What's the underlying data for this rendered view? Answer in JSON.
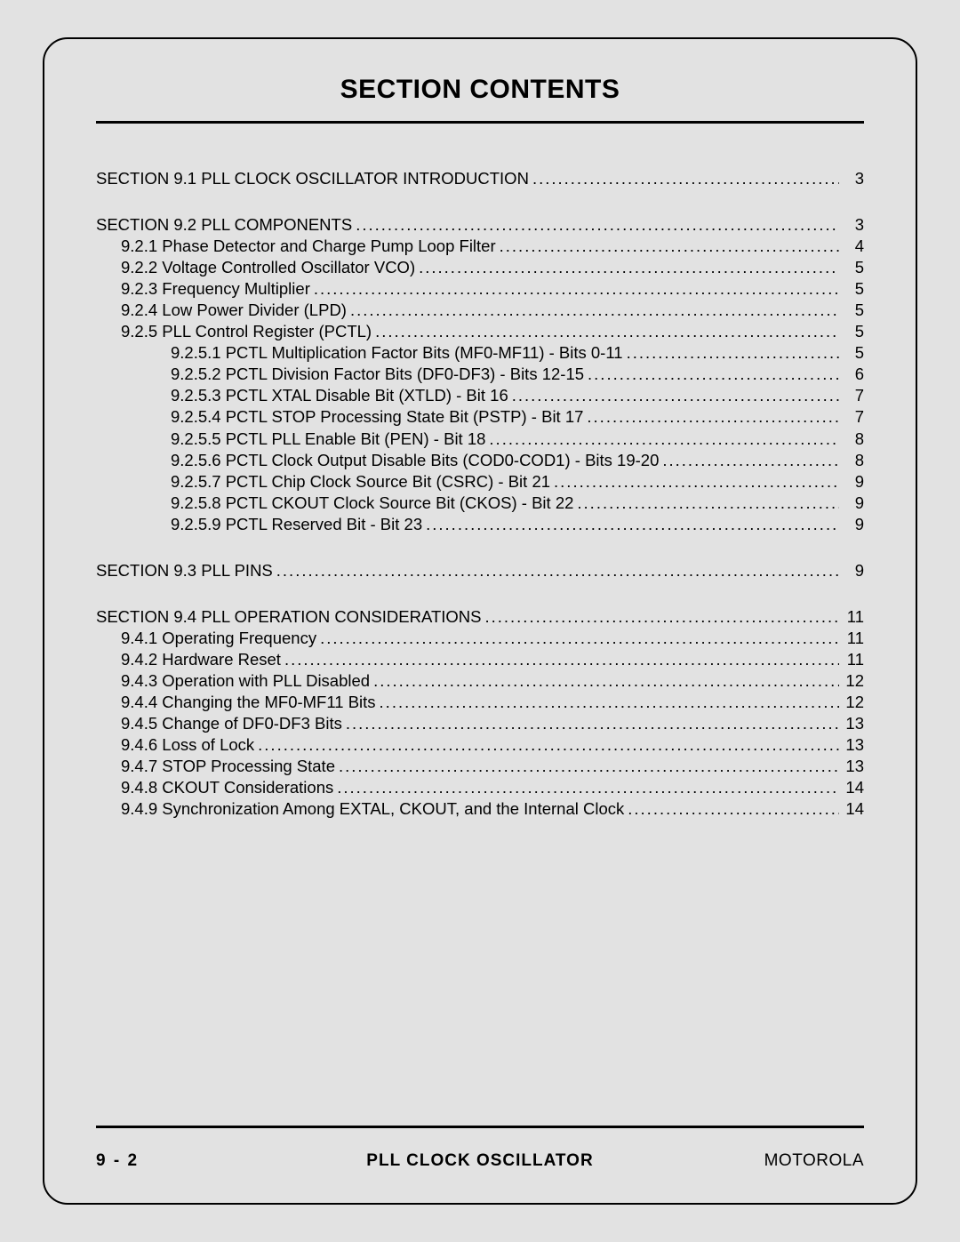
{
  "title": "SECTION CONTENTS",
  "footer": {
    "left": "9 - 2",
    "center": "PLL CLOCK OSCILLATOR",
    "right": "MOTOROLA"
  },
  "colors": {
    "page_bg": "#e2e2e2",
    "text": "#000000",
    "rule": "#000000"
  },
  "typography": {
    "title_fontsize": 30,
    "body_fontsize": 18.5,
    "footer_fontsize": 19
  },
  "toc": [
    {
      "entries": [
        {
          "level": 0,
          "label": "SECTION 9.1 PLL CLOCK OSCILLATOR INTRODUCTION",
          "page": "3"
        }
      ]
    },
    {
      "entries": [
        {
          "level": 0,
          "label": "SECTION 9.2 PLL COMPONENTS",
          "page": "3"
        },
        {
          "level": 1,
          "label": "9.2.1 Phase Detector and Charge Pump Loop Filter",
          "page": "4"
        },
        {
          "level": 1,
          "label": "9.2.2 Voltage Controlled Oscillator VCO)",
          "page": "5"
        },
        {
          "level": 1,
          "label": "9.2.3 Frequency Multiplier",
          "page": "5"
        },
        {
          "level": 1,
          "label": "9.2.4 Low Power Divider (LPD)",
          "page": "5"
        },
        {
          "level": 1,
          "label": "9.2.5 PLL Control Register (PCTL)",
          "page": "5"
        },
        {
          "level": 2,
          "label": "9.2.5.1 PCTL Multiplication Factor Bits (MF0-MF11) - Bits 0-11",
          "page": "5"
        },
        {
          "level": 2,
          "label": "9.2.5.2 PCTL Division Factor Bits (DF0-DF3) - Bits 12-15",
          "page": "6"
        },
        {
          "level": 2,
          "label": "9.2.5.3 PCTL XTAL Disable Bit (XTLD) - Bit 16",
          "page": "7"
        },
        {
          "level": 2,
          "label": "9.2.5.4 PCTL STOP Processing State Bit (PSTP) - Bit 17",
          "page": "7"
        },
        {
          "level": 2,
          "label": "9.2.5.5 PCTL PLL Enable Bit (PEN) - Bit 18",
          "page": "8"
        },
        {
          "level": 2,
          "label": "9.2.5.6 PCTL Clock Output Disable Bits (COD0-COD1) - Bits 19-20",
          "page": "8"
        },
        {
          "level": 2,
          "label": "9.2.5.7 PCTL Chip Clock Source Bit (CSRC) - Bit 21",
          "page": "9"
        },
        {
          "level": 2,
          "label": "9.2.5.8 PCTL CKOUT Clock Source Bit (CKOS) - Bit 22",
          "page": "9"
        },
        {
          "level": 2,
          "label": "9.2.5.9 PCTL Reserved Bit - Bit 23",
          "page": "9"
        }
      ]
    },
    {
      "entries": [
        {
          "level": 0,
          "label": "SECTION 9.3 PLL PINS",
          "page": "9"
        }
      ]
    },
    {
      "entries": [
        {
          "level": 0,
          "label": "SECTION 9.4 PLL OPERATION CONSIDERATIONS",
          "page": "11"
        },
        {
          "level": 1,
          "label": "9.4.1 Operating Frequency",
          "page": "11"
        },
        {
          "level": 1,
          "label": "9.4.2 Hardware Reset",
          "page": "11"
        },
        {
          "level": 1,
          "label": "9.4.3 Operation with PLL Disabled",
          "page": "12"
        },
        {
          "level": 1,
          "label": "9.4.4 Changing the MF0-MF11 Bits",
          "page": "12"
        },
        {
          "level": 1,
          "label": "9.4.5 Change of DF0-DF3 Bits",
          "page": "13"
        },
        {
          "level": 1,
          "label": "9.4.6 Loss of Lock",
          "page": "13"
        },
        {
          "level": 1,
          "label": "9.4.7 STOP Processing State",
          "page": "13"
        },
        {
          "level": 1,
          "label": "9.4.8 CKOUT Considerations",
          "page": "14"
        },
        {
          "level": 1,
          "label": "9.4.9 Synchronization Among EXTAL, CKOUT, and the Internal Clock",
          "page": "14"
        }
      ]
    }
  ]
}
